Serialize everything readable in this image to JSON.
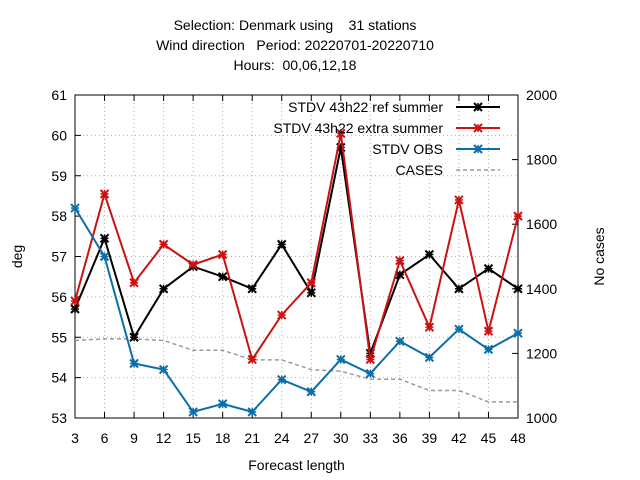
{
  "chart_data": {
    "type": "line",
    "title_lines": [
      "Selection: Denmark using    31 stations",
      "Wind direction   Period: 20220701-20220710",
      "Hours:  00,06,12,18"
    ],
    "xlabel": "Forecast length",
    "ylabel": "deg",
    "y2label": "No cases",
    "x": [
      3,
      6,
      9,
      12,
      15,
      18,
      21,
      24,
      27,
      30,
      33,
      36,
      39,
      42,
      45,
      48
    ],
    "xlim": [
      3,
      48
    ],
    "ylim": [
      53,
      61
    ],
    "y2lim": [
      1000,
      2000
    ],
    "yticks": [
      53,
      54,
      55,
      56,
      57,
      58,
      59,
      60,
      61
    ],
    "y2ticks": [
      1000,
      1200,
      1400,
      1600,
      1800,
      2000
    ],
    "grid": true,
    "legend_position": "top-right",
    "series": [
      {
        "name": "STDV 43h22_ref_summer",
        "legend_text": "STDV 43h22 ref summer",
        "color": "#000000",
        "axis": "y",
        "marker": "star",
        "dashed": false,
        "values": [
          55.7,
          57.45,
          55.0,
          56.2,
          56.75,
          56.5,
          56.2,
          57.3,
          56.1,
          59.7,
          54.6,
          56.55,
          57.05,
          56.2,
          56.7,
          56.2
        ]
      },
      {
        "name": "STDV 43h22_extra_summer",
        "legend_text": "STDV 43h22 extra summer",
        "color": "#cc1111",
        "axis": "y",
        "marker": "star",
        "dashed": false,
        "values": [
          55.9,
          58.55,
          56.35,
          57.3,
          56.8,
          57.05,
          54.45,
          55.55,
          56.35,
          60.05,
          54.45,
          56.9,
          55.25,
          58.4,
          55.15,
          58.0
        ]
      },
      {
        "name": "STDV OBS",
        "legend_text": "STDV OBS",
        "color": "#0a6fa8",
        "axis": "y",
        "marker": "star",
        "dashed": false,
        "values": [
          58.2,
          57.0,
          54.35,
          54.2,
          53.15,
          53.35,
          53.15,
          53.95,
          53.65,
          54.45,
          54.1,
          54.9,
          54.5,
          55.2,
          54.7,
          55.1
        ]
      },
      {
        "name": "CASES",
        "legend_text": "CASES",
        "color": "#999999",
        "axis": "y2",
        "marker": "none",
        "dashed": true,
        "values": [
          1240,
          1245,
          1245,
          1240,
          1210,
          1210,
          1180,
          1180,
          1150,
          1145,
          1120,
          1120,
          1085,
          1085,
          1050,
          1050
        ]
      }
    ]
  }
}
